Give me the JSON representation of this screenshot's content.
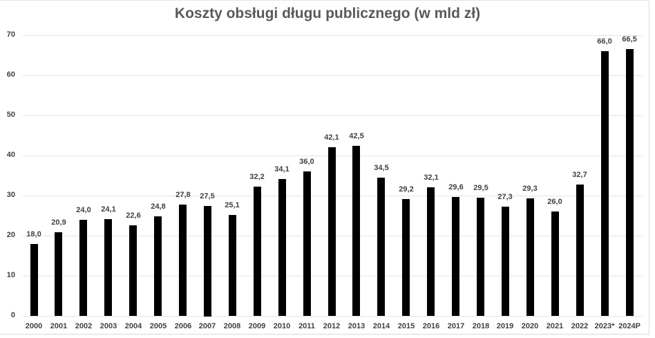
{
  "chart_data": {
    "type": "bar",
    "title": "Koszty obsługi długu publicznego (w mld zł)",
    "xlabel": "",
    "ylabel": "",
    "ylim": [
      0,
      70
    ],
    "yticks": [
      0,
      10,
      20,
      30,
      40,
      50,
      60,
      70
    ],
    "grid": true,
    "legend": null,
    "bar_color": "#000000",
    "categories": [
      "2000",
      "2001",
      "2002",
      "2003",
      "2004",
      "2005",
      "2006",
      "2007",
      "2008",
      "2009",
      "2010",
      "2011",
      "2012",
      "2013",
      "2014",
      "2015",
      "2016",
      "2017",
      "2018",
      "2019",
      "2020",
      "2021",
      "2022",
      "2023*",
      "2024P"
    ],
    "values": [
      18.0,
      20.9,
      24.0,
      24.1,
      22.6,
      24.8,
      27.8,
      27.5,
      25.1,
      32.2,
      34.1,
      36.0,
      42.1,
      42.5,
      34.5,
      29.2,
      32.1,
      29.6,
      29.5,
      27.3,
      29.3,
      26.0,
      32.7,
      66.0,
      66.5
    ],
    "value_labels": [
      "18,0",
      "20,9",
      "24,0",
      "24,1",
      "22,6",
      "24,8",
      "27,8",
      "27,5",
      "25,1",
      "32,2",
      "34,1",
      "36,0",
      "42,1",
      "42,5",
      "34,5",
      "29,2",
      "32,1",
      "29,6",
      "29,5",
      "27,3",
      "29,3",
      "26,0",
      "32,7",
      "66,0",
      "66,5"
    ]
  }
}
